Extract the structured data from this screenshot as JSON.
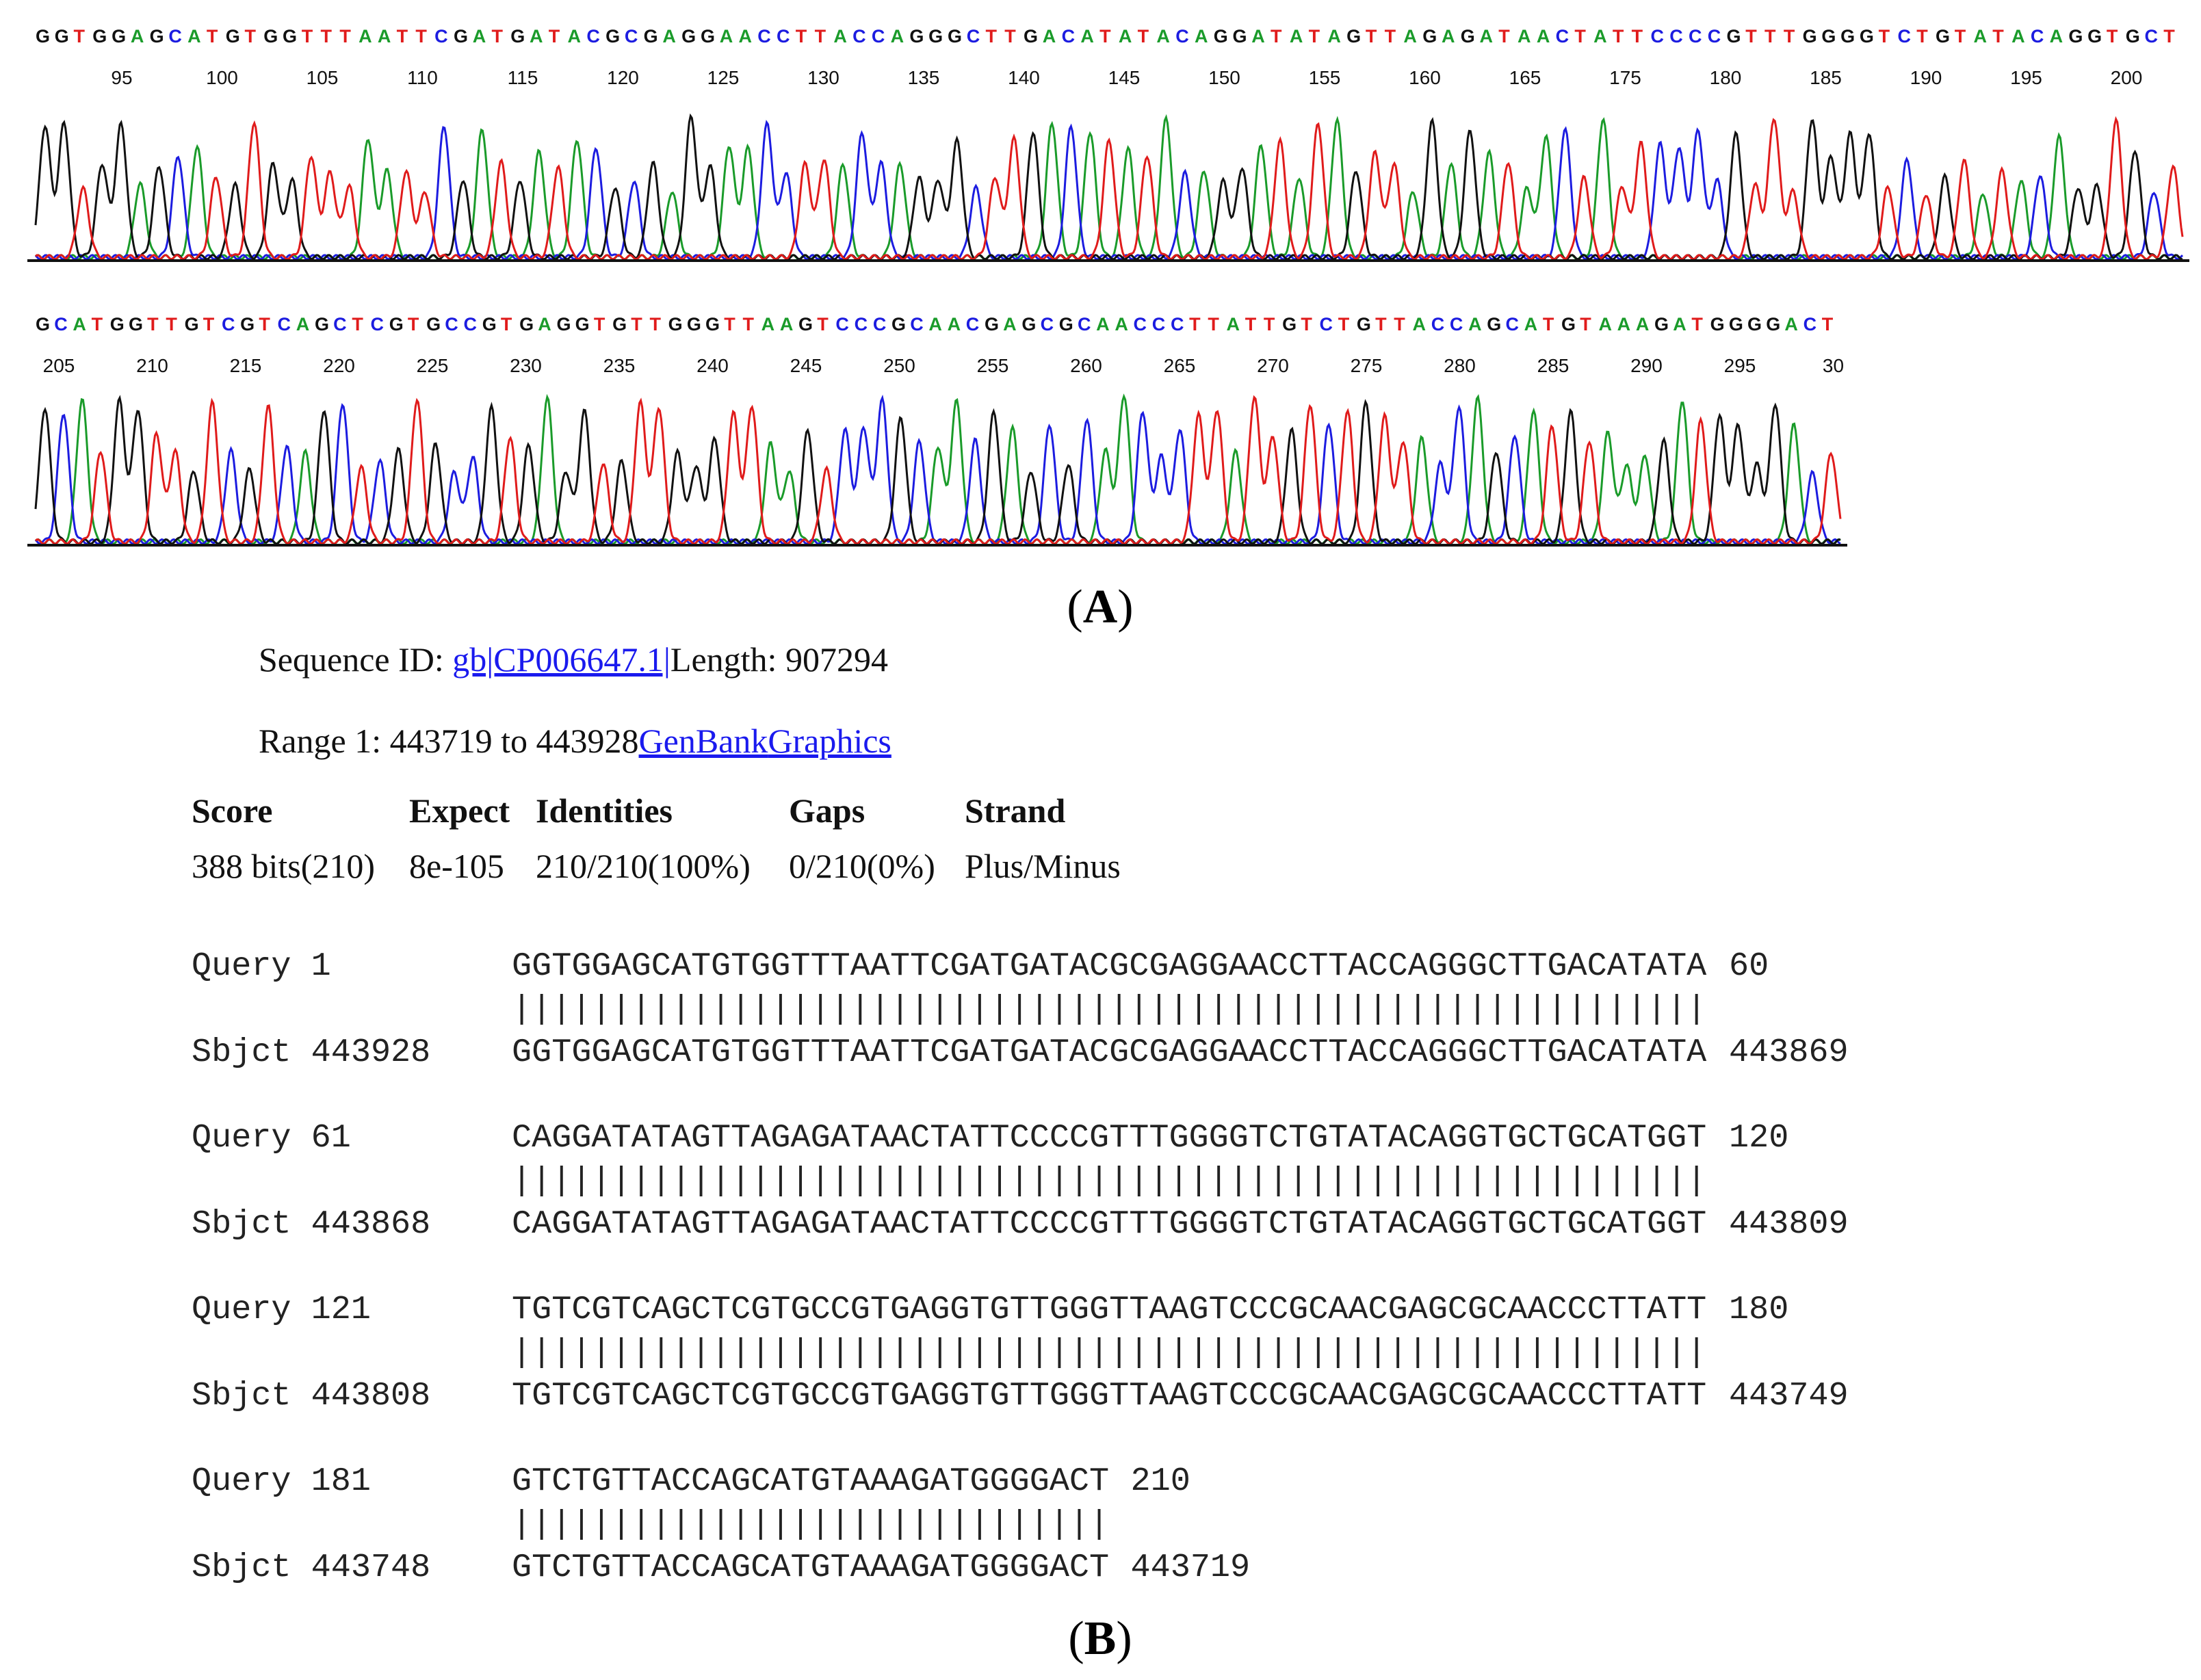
{
  "panel_a": {
    "trace1": {
      "bases": "GGTGGAGCATGTGGTTTAATTCGATGATACGCGAGGAACCTTACCAGGGCTTGACATATACAGGATATAGTTAGAGATAACTATTCCCCGTTTGGGGTCTGTATACAGGTGCT",
      "ticks": [
        "95",
        "100",
        "105",
        "110",
        "115",
        "120",
        "125",
        "130",
        "135",
        "140",
        "145",
        "150",
        "155",
        "160",
        "165",
        "175",
        "180",
        "185",
        "190",
        "195",
        "200"
      ]
    },
    "trace2": {
      "bases": "GCATGGTTGTCGTCAGCTCGTGCCGTGAGGTGTTGGGTTAAGTCCCGCAACGAGCGCAACCCTTATTGTCTGTTACCAGCATGTAAAGATGGGGACT",
      "ticks": [
        "205",
        "210",
        "215",
        "220",
        "225",
        "230",
        "235",
        "240",
        "245",
        "250",
        "255",
        "260",
        "265",
        "270",
        "275",
        "280",
        "285",
        "290",
        "295",
        "30"
      ]
    },
    "base_colors": {
      "A": "#1a9b2a",
      "C": "#1c1ce0",
      "G": "#111111",
      "T": "#e01b1b"
    },
    "label": "A"
  },
  "panel_b": {
    "seq_id_prefix": "Sequence ID: ",
    "seq_id_link": "gb|CP006647.1|",
    "length_text": "Length: 907294",
    "range_text": "Range 1: 443719 to 443928",
    "range_link1": "GenBank",
    "range_link2": "Graphics",
    "headers": {
      "score": "Score",
      "expect": "Expect",
      "identities": "Identities",
      "gaps": "Gaps",
      "strand": "Strand"
    },
    "values": {
      "score": "388 bits(210)",
      "expect": "8e-105",
      "identities": "210/210(100%)",
      "gaps": "0/210(0%)",
      "strand": "Plus/Minus"
    },
    "alignment": [
      {
        "q_label": "Query 1",
        "q_seq": "GGTGGAGCATGTGGTTTAATTCGATGATACGCGAGGAACCTTACCAGGGCTTGACATATA",
        "q_end": "60",
        "match": "||||||||||||||||||||||||||||||||||||||||||||||||||||||||||||",
        "s_label": "Sbjct 443928",
        "s_seq": "GGTGGAGCATGTGGTTTAATTCGATGATACGCGAGGAACCTTACCAGGGCTTGACATATA",
        "s_end": "443869"
      },
      {
        "q_label": "Query 61",
        "q_seq": "CAGGATATAGTTAGAGATAACTATTCCCCGTTTGGGGTCTGTATACAGGTGCTGCATGGT",
        "q_end": "120",
        "match": "||||||||||||||||||||||||||||||||||||||||||||||||||||||||||||",
        "s_label": "Sbjct 443868",
        "s_seq": "CAGGATATAGTTAGAGATAACTATTCCCCGTTTGGGGTCTGTATACAGGTGCTGCATGGT",
        "s_end": "443809"
      },
      {
        "q_label": "Query 121",
        "q_seq": "TGTCGTCAGCTCGTGCCGTGAGGTGTTGGGTTAAGTCCCGCAACGAGCGCAACCCTTATT",
        "q_end": "180",
        "match": "||||||||||||||||||||||||||||||||||||||||||||||||||||||||||||",
        "s_label": "Sbjct 443808",
        "s_seq": "TGTCGTCAGCTCGTGCCGTGAGGTGTTGGGTTAAGTCCCGCAACGAGCGCAACCCTTATT",
        "s_end": "443749"
      },
      {
        "q_label": "Query 181",
        "q_seq": "GTCTGTTACCAGCATGTAAAGATGGGGACT",
        "q_end": "210",
        "match": "||||||||||||||||||||||||||||||",
        "s_label": "Sbjct 443748",
        "s_seq": "GTCTGTTACCAGCATGTAAAGATGGGGACT",
        "s_end": "443719"
      }
    ],
    "label": "B"
  }
}
